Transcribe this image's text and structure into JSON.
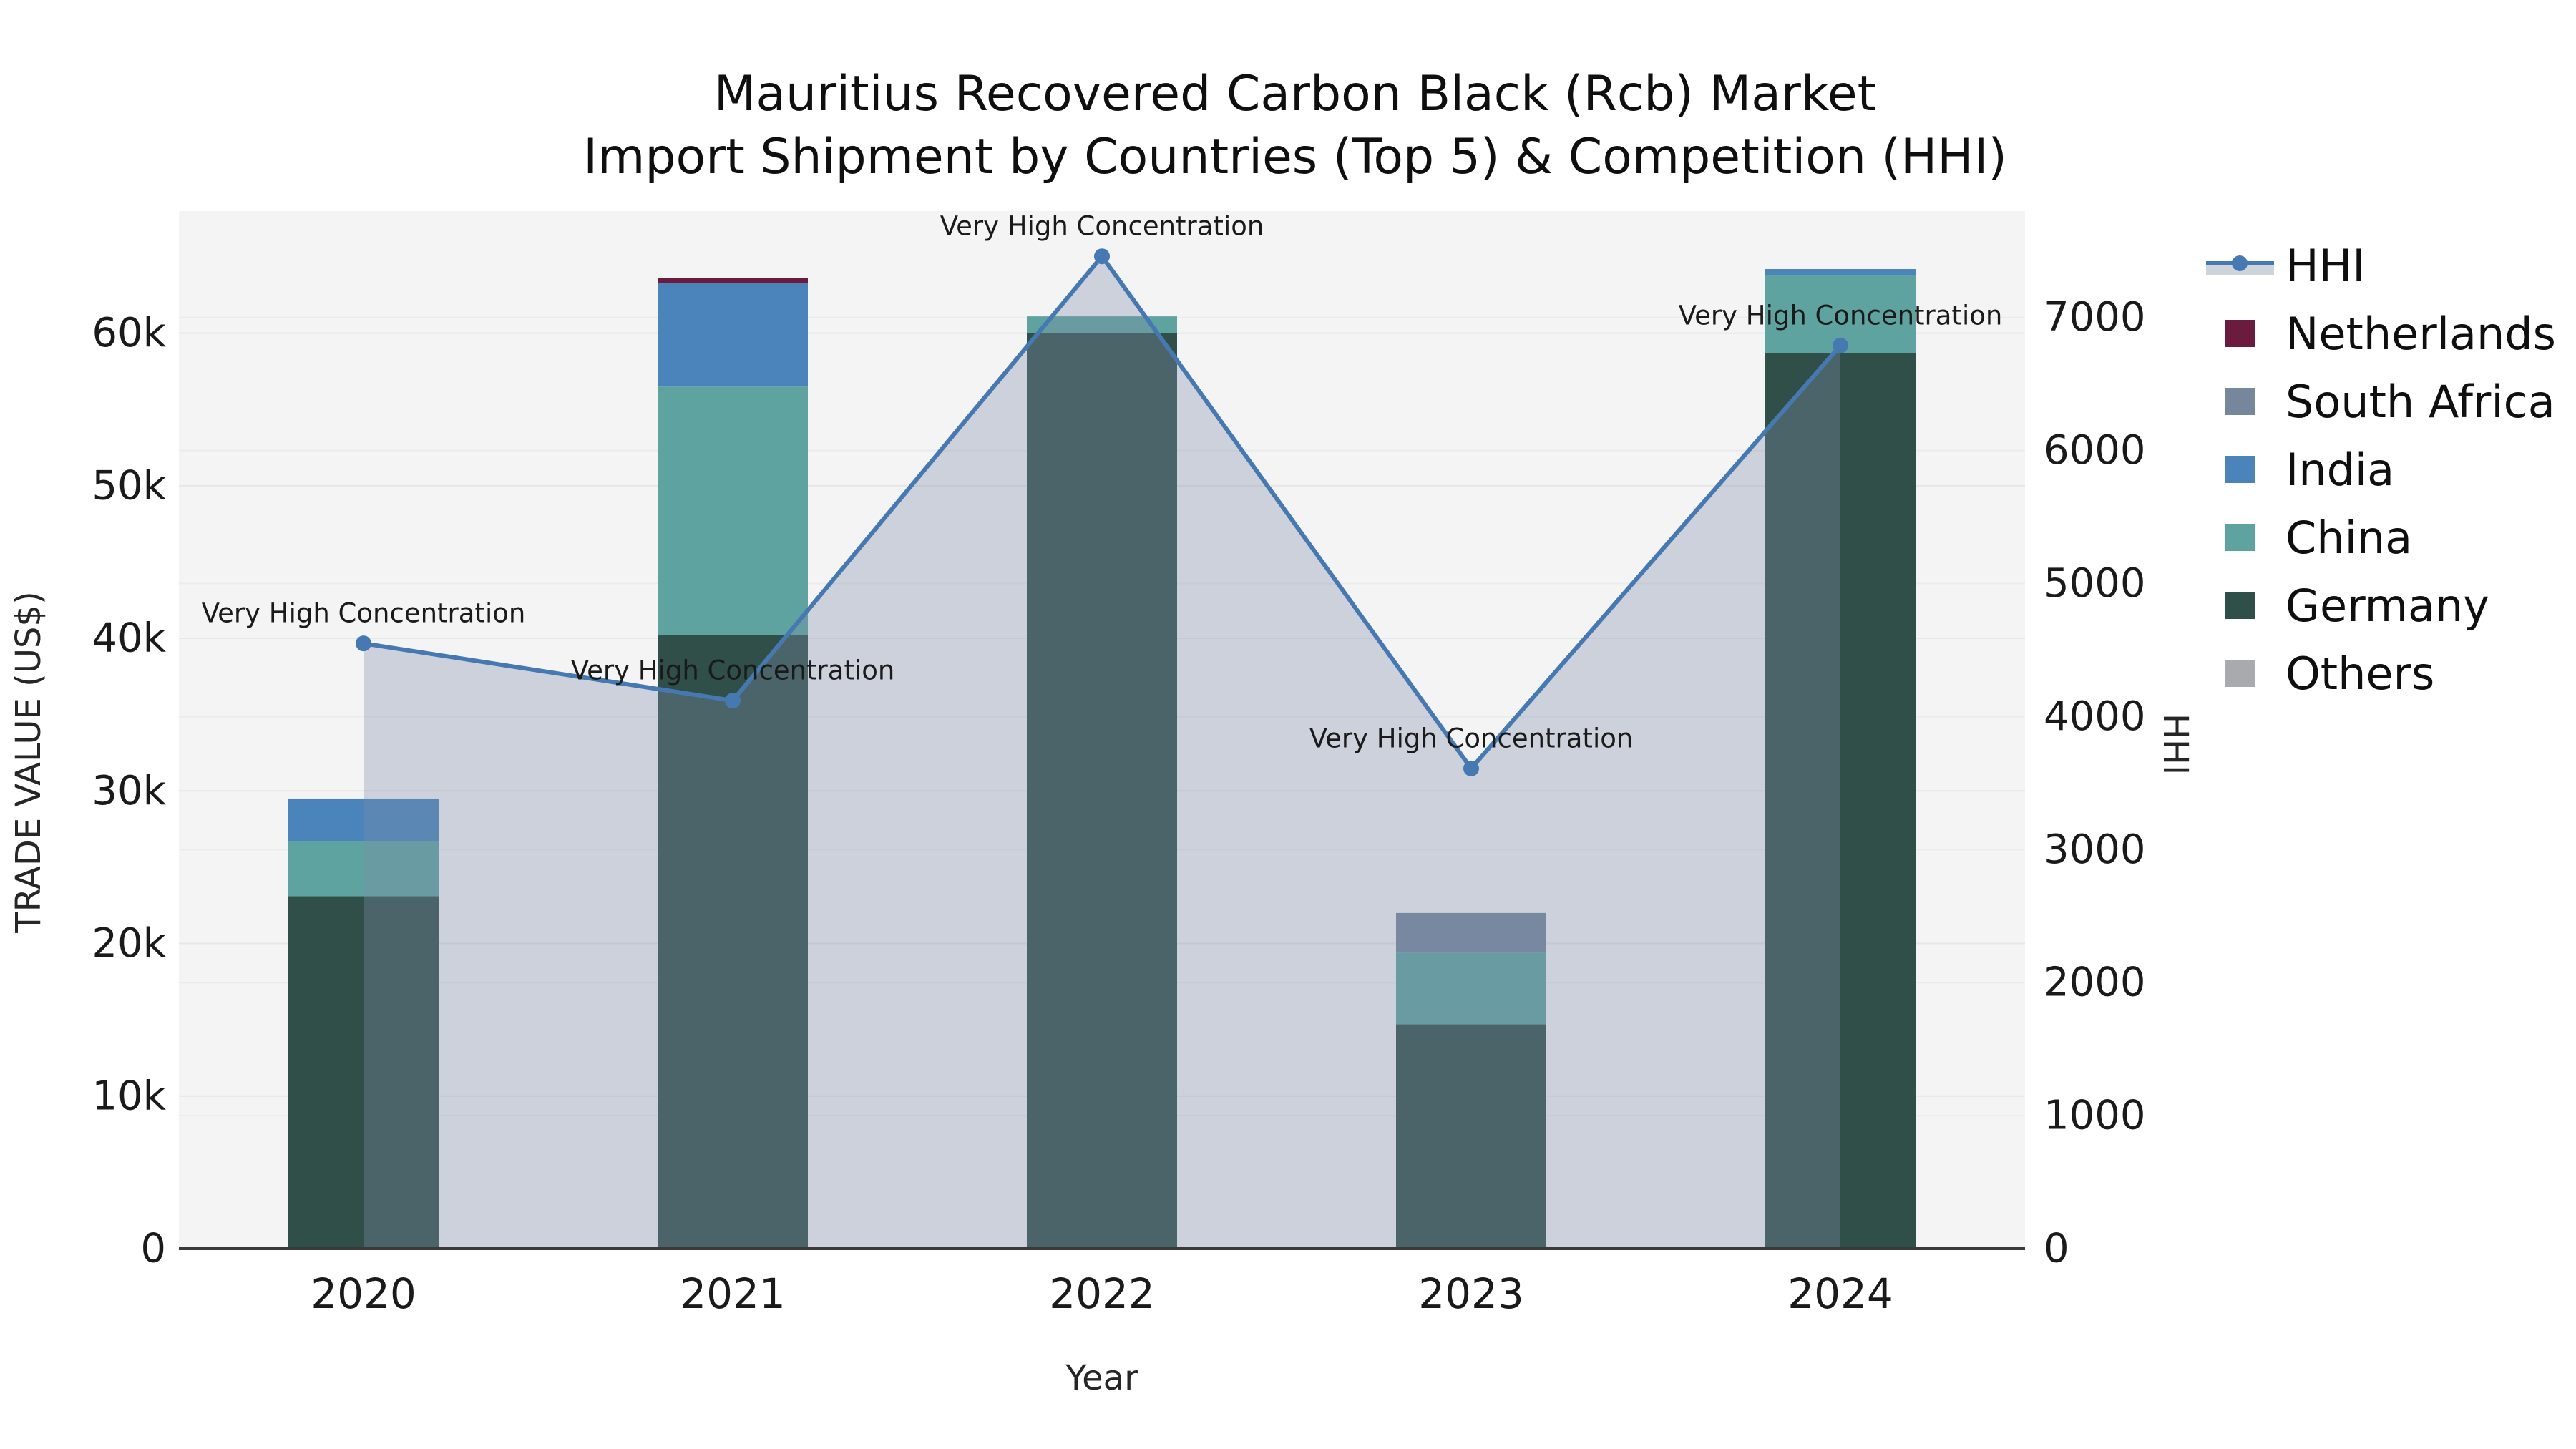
{
  "title": {
    "line1": "Mauritius Recovered Carbon Black (Rcb) Market",
    "line2": "Import Shipment by Countries (Top 5) & Competition (HHI)"
  },
  "axes": {
    "x_label": "Year",
    "y_left_label": "TRADE VALUE (US$)",
    "y_right_label": "HHI",
    "x_ticks": [
      "2020",
      "2021",
      "2022",
      "2023",
      "2024"
    ],
    "y_left_ticks": [
      "0",
      "10k",
      "20k",
      "30k",
      "40k",
      "50k",
      "60k"
    ],
    "y_right_ticks": [
      "0",
      "1000",
      "2000",
      "3000",
      "4000",
      "5000",
      "6000",
      "7000"
    ]
  },
  "legend": {
    "items": [
      {
        "label": "HHI",
        "type": "line",
        "color": "#4679b1",
        "band_color": "#ced4dc"
      },
      {
        "label": "Netherlands",
        "type": "swatch",
        "color": "#6b1c3e"
      },
      {
        "label": "South Africa",
        "type": "swatch",
        "color": "#76869c"
      },
      {
        "label": "India",
        "type": "swatch",
        "color": "#4a84ba"
      },
      {
        "label": "China",
        "type": "swatch",
        "color": "#5fa3a0"
      },
      {
        "label": "Germany",
        "type": "swatch",
        "color": "#2f4f48"
      },
      {
        "label": "Others",
        "type": "swatch",
        "color": "#a8aaad"
      }
    ]
  },
  "chart_data": {
    "type": "bar+line",
    "title": "Mauritius Recovered Carbon Black (Rcb) Market Import Shipment by Countries (Top 5) & Competition (HHI)",
    "xlabel": "Year",
    "ylabel": "TRADE VALUE (US$)",
    "y2label": "HHI",
    "categories": [
      "2020",
      "2021",
      "2022",
      "2023",
      "2024"
    ],
    "stack_order_bottom_to_top": [
      "Others",
      "Germany",
      "China",
      "India",
      "South Africa",
      "Netherlands"
    ],
    "bar_series": [
      {
        "name": "Others",
        "color": "#a8aaad",
        "values": [
          0,
          0,
          0,
          0,
          0
        ]
      },
      {
        "name": "Germany",
        "color": "#2f4f48",
        "values": [
          23100,
          40200,
          60000,
          14700,
          58700
        ]
      },
      {
        "name": "China",
        "color": "#5fa3a0",
        "values": [
          3600,
          16300,
          1100,
          4700,
          5100
        ]
      },
      {
        "name": "India",
        "color": "#4a84ba",
        "values": [
          2800,
          6800,
          0,
          0,
          400
        ]
      },
      {
        "name": "South Africa",
        "color": "#76869c",
        "values": [
          0,
          0,
          0,
          2600,
          0
        ]
      },
      {
        "name": "Netherlands",
        "color": "#6b1c3e",
        "values": [
          0,
          300,
          0,
          0,
          0
        ]
      }
    ],
    "bar_totals": [
      29500,
      63600,
      61100,
      22000,
      64200
    ],
    "line_series": {
      "name": "HHI",
      "color": "#4679b1",
      "fill_color": "rgba(126,141,171,0.34)",
      "values": [
        4550,
        4120,
        7460,
        3610,
        6790
      ],
      "point_annotations": [
        "Very High Concentration",
        "Very High Concentration",
        "Very High Concentration",
        "Very High Concentration",
        "Very High Concentration"
      ]
    },
    "ylim": [
      0,
      68000
    ],
    "y2lim": [
      0,
      7800
    ],
    "y_tick_values": [
      0,
      10000,
      20000,
      30000,
      40000,
      50000,
      60000
    ],
    "y2_tick_values": [
      0,
      1000,
      2000,
      3000,
      4000,
      5000,
      6000,
      7000
    ],
    "grid": true,
    "legend_position": "right"
  }
}
